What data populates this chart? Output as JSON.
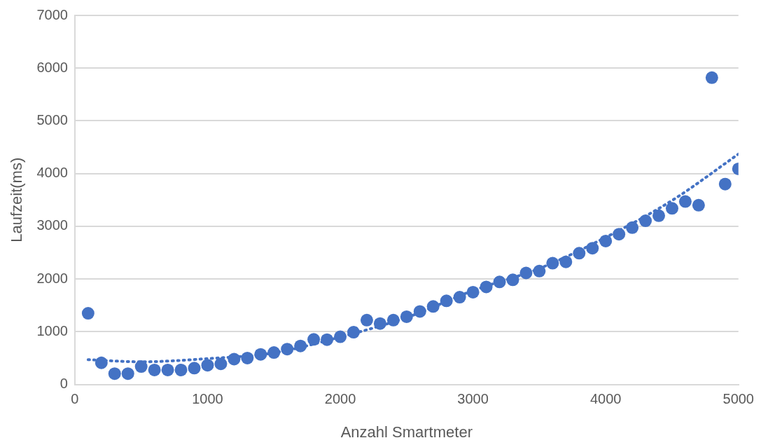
{
  "chart_data": {
    "type": "scatter",
    "xlabel": "Anzahl Smartmeter",
    "ylabel": "Laufzeit(ms)",
    "x": [
      100,
      200,
      300,
      400,
      500,
      600,
      700,
      800,
      900,
      1000,
      1100,
      1200,
      1300,
      1400,
      1500,
      1600,
      1700,
      1800,
      1900,
      2000,
      2100,
      2200,
      2300,
      2400,
      2500,
      2600,
      2700,
      2800,
      2900,
      3000,
      3100,
      3200,
      3300,
      3400,
      3500,
      3600,
      3700,
      3800,
      3900,
      4000,
      4100,
      4200,
      4300,
      4400,
      4500,
      4600,
      4700,
      4800,
      4900,
      5000
    ],
    "series": [
      {
        "color": "#4472c4",
        "marker": "circle",
        "values": [
          1350,
          410,
          205,
          205,
          340,
          275,
          275,
          275,
          310,
          365,
          390,
          480,
          500,
          570,
          605,
          670,
          730,
          855,
          850,
          905,
          990,
          1220,
          1155,
          1220,
          1285,
          1385,
          1480,
          1585,
          1655,
          1750,
          1850,
          1945,
          1985,
          2115,
          2150,
          2300,
          2325,
          2490,
          2585,
          2720,
          2850,
          2975,
          3105,
          3200,
          3340,
          3470,
          3400,
          5820,
          3800,
          4090
        ]
      },
      {
        "type": "line",
        "color": "#4472c4",
        "line_style": "dotted",
        "marker": "none",
        "x": [
          100,
          500,
          1000,
          1500,
          2000,
          2500,
          3000,
          3500,
          4000,
          4500,
          5000
        ],
        "values": [
          470,
          430,
          490,
          600,
          900,
          1270,
          1780,
          2200,
          2790,
          3490,
          4370
        ]
      }
    ],
    "xlim": [
      0,
      5000
    ],
    "xticks": [
      0,
      1000,
      2000,
      3000,
      4000,
      5000
    ],
    "ylim": [
      0,
      7000
    ],
    "yticks": [
      0,
      1000,
      2000,
      3000,
      4000,
      5000,
      6000,
      7000
    ],
    "grid": "y",
    "legend": false
  }
}
